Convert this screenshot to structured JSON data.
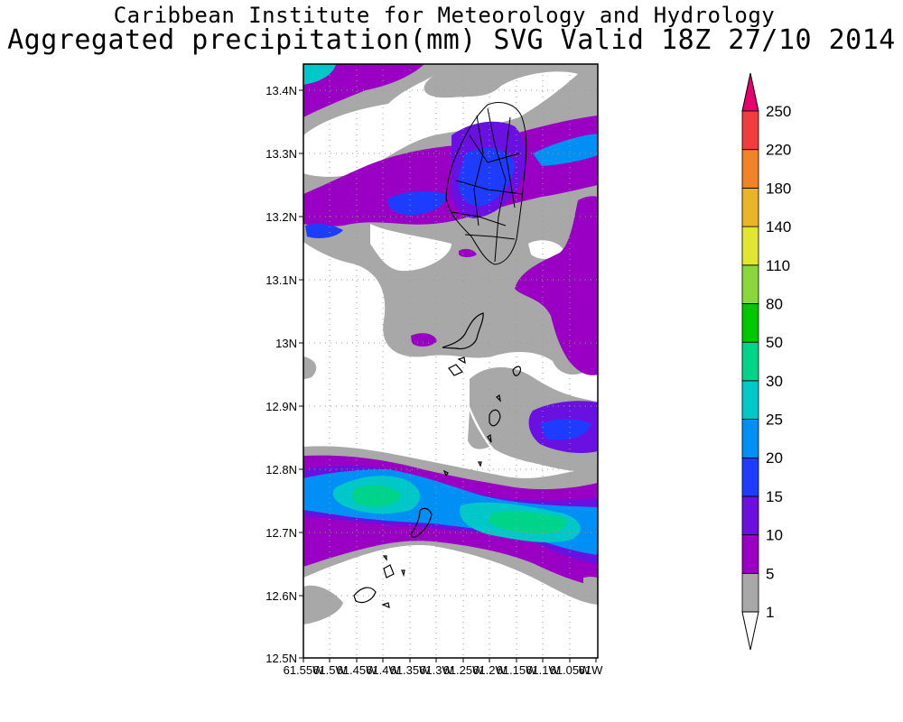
{
  "header": {
    "line1": "Caribbean Institute for Meteorology and Hydrology",
    "line2": "Aggregated precipitation(mm) SVG Valid 18Z 27/10 2014"
  },
  "map": {
    "lat_ticks": [
      "13.4N",
      "13.3N",
      "13.2N",
      "13.1N",
      "13N",
      "12.9N",
      "12.8N",
      "12.7N",
      "12.6N",
      "12.5N"
    ],
    "lon_ticks": [
      "61.55W",
      "61.5W",
      "61.45W",
      "61.4W",
      "61.35W",
      "61.3W",
      "61.25W",
      "61.2W",
      "61.15W",
      "61.1W",
      "61.05W",
      "61W"
    ],
    "lat_range": [
      12.5,
      13.44
    ],
    "lon_range": [
      -61.55,
      -61.0
    ],
    "gridlines": true
  },
  "colorbar": {
    "levels": [
      "1",
      "5",
      "10",
      "15",
      "20",
      "25",
      "30",
      "50",
      "80",
      "110",
      "140",
      "180",
      "220",
      "250"
    ],
    "colors": {
      "1": "#a8a8a8",
      "5": "#9a00c4",
      "10": "#6a10e0",
      "15": "#1e3cff",
      "20": "#0090f5",
      "25": "#00c8c8",
      "30": "#00d48a",
      "50": "#00c800",
      "80": "#8ad63c",
      "110": "#e0e632",
      "140": "#e8b428",
      "180": "#f08228",
      "220": "#f03c3c",
      "250": "#e6006e"
    }
  }
}
